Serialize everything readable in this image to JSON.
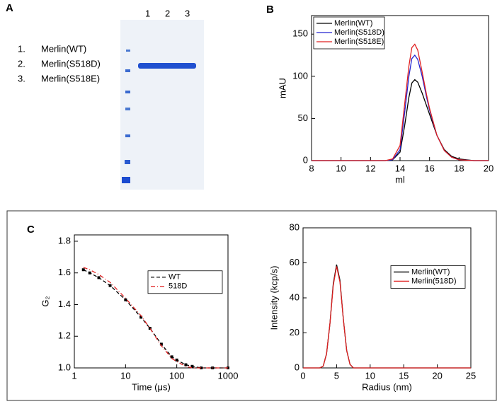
{
  "panel_labels": [
    "A",
    "B",
    "C"
  ],
  "gel": {
    "lane_labels": [
      "1",
      "2",
      "3"
    ],
    "legend": [
      {
        "num": "1.",
        "name": "Merlin(WT)"
      },
      {
        "num": "2.",
        "name": "Merlin(S518D)"
      },
      {
        "num": "3.",
        "name": "Merlin(S518E)"
      }
    ]
  },
  "chart_data": [
    {
      "type": "line",
      "x_label": "ml",
      "y_label": "mAU",
      "x": [
        8,
        12,
        13,
        13.5,
        14,
        14.3,
        14.6,
        14.8,
        15,
        15.2,
        15.5,
        15.8,
        16,
        16.5,
        17,
        17.5,
        18,
        19,
        20
      ],
      "series": [
        {
          "name": "Merlin(WT)",
          "color": "#000000",
          "linestyle": "solid",
          "values": [
            0,
            0,
            0,
            1,
            10,
            40,
            75,
            92,
            96,
            93,
            80,
            65,
            55,
            30,
            13,
            5,
            2,
            0,
            0
          ]
        },
        {
          "name": "Merlin(S518D)",
          "color": "#2323d0",
          "linestyle": "solid",
          "values": [
            0,
            0,
            0,
            1,
            13,
            55,
            100,
            121,
            125,
            120,
            100,
            75,
            60,
            30,
            12,
            4,
            1,
            0,
            0
          ]
        },
        {
          "name": "Merlin(S518E)",
          "color": "#e02020",
          "linestyle": "solid",
          "values": [
            0,
            0,
            0,
            2,
            18,
            65,
            112,
            134,
            138,
            131,
            105,
            78,
            62,
            30,
            12,
            4,
            1,
            0,
            0
          ]
        }
      ],
      "xlim": [
        8,
        20
      ],
      "xticks": [
        8,
        10,
        12,
        14,
        16,
        18,
        20
      ],
      "ylim": [
        0,
        172
      ],
      "yticks": [
        0,
        50,
        100,
        150
      ],
      "legend": "upper left"
    },
    {
      "type": "line",
      "x_label": "Time (μs)",
      "y_label": "G₂",
      "xscale": "log",
      "x": [
        1.5,
        2,
        3,
        5,
        10,
        20,
        30,
        50,
        80,
        100,
        150,
        200,
        300,
        500,
        1000
      ],
      "series": [
        {
          "name": "WT",
          "color": "#000000",
          "linestyle": "dashed",
          "marker": "square",
          "values": [
            1.62,
            1.6,
            1.57,
            1.52,
            1.43,
            1.32,
            1.25,
            1.15,
            1.07,
            1.05,
            1.02,
            1.01,
            1.0,
            1.0,
            1.0
          ]
        },
        {
          "name": "518D",
          "color": "#e02020",
          "linestyle": "dashdot",
          "values": [
            1.635,
            1.62,
            1.59,
            1.54,
            1.44,
            1.33,
            1.25,
            1.14,
            1.06,
            1.04,
            1.01,
            1.0,
            1.0,
            1.0,
            1.0
          ]
        }
      ],
      "xlim": [
        1,
        1000
      ],
      "xticks": [
        1,
        10,
        100,
        1000
      ],
      "ylim": [
        1.0,
        1.84
      ],
      "yticks": [
        {
          "value": 1.0,
          "label": "1.0"
        },
        1.2,
        1.4,
        1.6,
        1.8
      ],
      "legend": "center right"
    },
    {
      "type": "line",
      "x_label": "Radius (nm)",
      "y_label": "Intensity (kcp/s)",
      "x": [
        0,
        2.5,
        3,
        3.5,
        4,
        4.5,
        5,
        5.5,
        6,
        6.5,
        7,
        7.5,
        8,
        25
      ],
      "series": [
        {
          "name": "Merlin(WT)",
          "color": "#000000",
          "linestyle": "solid",
          "values": [
            0,
            0,
            1,
            8,
            25,
            48,
            59,
            50,
            28,
            10,
            2,
            0,
            0,
            0
          ]
        },
        {
          "name": "Merlin(518D)",
          "color": "#e02020",
          "linestyle": "solid",
          "values": [
            0,
            0,
            1,
            8,
            25,
            47,
            58,
            49,
            28,
            10,
            2,
            0,
            0,
            0
          ]
        }
      ],
      "xlim": [
        0,
        25
      ],
      "xticks": [
        0,
        5,
        10,
        15,
        20,
        25
      ],
      "ylim": [
        0,
        80
      ],
      "yticks": [
        0,
        20,
        40,
        60,
        80
      ],
      "legend": "center right"
    }
  ]
}
